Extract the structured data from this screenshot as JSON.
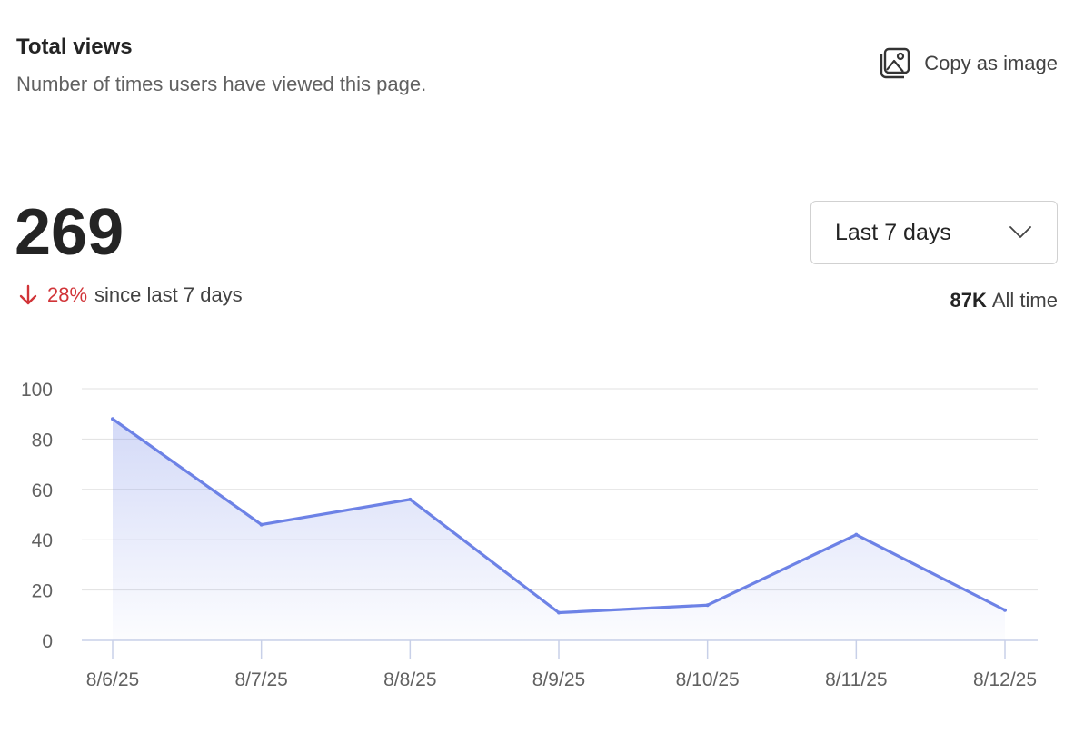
{
  "header": {
    "title": "Total views",
    "subtitle": "Number of times users have viewed this page.",
    "copy_label": "Copy as image"
  },
  "summary": {
    "total": "269",
    "change_pct": "28%",
    "change_text": "since last 7 days",
    "change_direction": "down",
    "all_time_value": "87K",
    "all_time_label": "All time"
  },
  "range_select": {
    "selected": "Last 7 days"
  },
  "colors": {
    "line": "#6d82e6",
    "down": "#d13438",
    "grid": "#e1e1e1",
    "axis": "#c8d0e8"
  },
  "chart_data": {
    "type": "area",
    "categories": [
      "8/6/25",
      "8/7/25",
      "8/8/25",
      "8/9/25",
      "8/10/25",
      "8/11/25",
      "8/12/25"
    ],
    "series": [
      {
        "values": [
          88,
          46,
          56,
          11,
          14,
          42,
          12
        ]
      }
    ],
    "yticks": [
      0,
      20,
      40,
      60,
      80,
      100
    ],
    "ylim": [
      0,
      100
    ],
    "grid": true
  }
}
